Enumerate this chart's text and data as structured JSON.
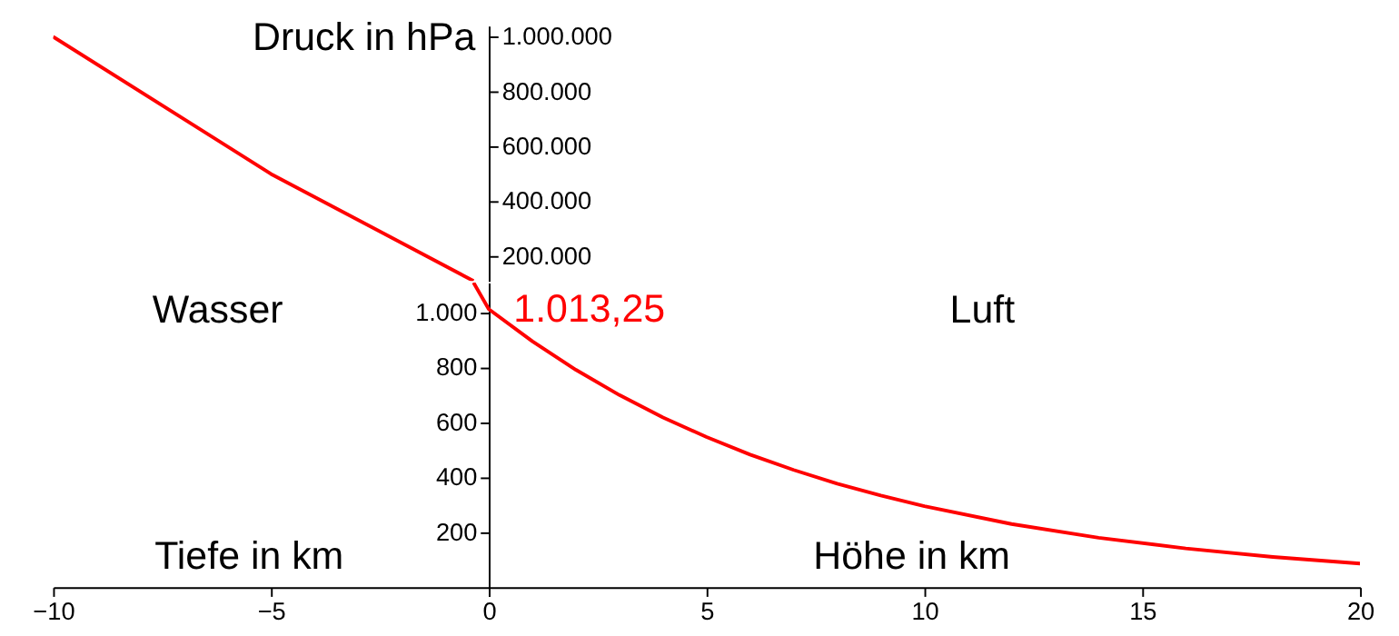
{
  "chart_data": [
    {
      "type": "line",
      "x": [
        -10,
        -5,
        -0.35
      ],
      "values": [
        1000000,
        500000,
        110000
      ],
      "color": "#ff0000",
      "ylabel": "Druck in hPa",
      "xlim": [
        -10,
        20
      ],
      "ylim": [
        110000,
        1040000
      ],
      "yticks": [
        {
          "value": 200000,
          "label": "200.000"
        },
        {
          "value": 400000,
          "label": "400.000"
        },
        {
          "value": 600000,
          "label": "600.000"
        },
        {
          "value": 800000,
          "label": "800.000"
        },
        {
          "value": 1000000,
          "label": "1.000.000"
        }
      ],
      "tick_labels": "y",
      "grid": false,
      "legend": false,
      "marker": "none",
      "line_style": "solid"
    },
    {
      "type": "line",
      "x": [
        -0.35,
        0,
        1,
        2,
        3,
        4,
        5,
        6,
        7,
        8,
        9,
        10,
        12,
        14,
        16,
        18,
        20
      ],
      "values": [
        1110,
        1013.25,
        896,
        792,
        700,
        618,
        547,
        483,
        427,
        377,
        334,
        295,
        230,
        180,
        141,
        110,
        86
      ],
      "color": "#ff0000",
      "xlim": [
        -10,
        20
      ],
      "xticks": [
        -10,
        -5,
        0,
        5,
        10,
        15,
        20
      ],
      "ylim": [
        0,
        1110
      ],
      "yticks": [
        200,
        400,
        600,
        800,
        {
          "value": 1000,
          "label": "1.000"
        }
      ],
      "annotations": [
        "Wasser",
        "Luft",
        {
          "text": "1.013,25",
          "x": 0,
          "y": 1013.25
        },
        "Tiefe in km",
        "Höhe in km"
      ],
      "grid": false,
      "legend": false,
      "marker": "none",
      "line_style": "solid"
    }
  ]
}
